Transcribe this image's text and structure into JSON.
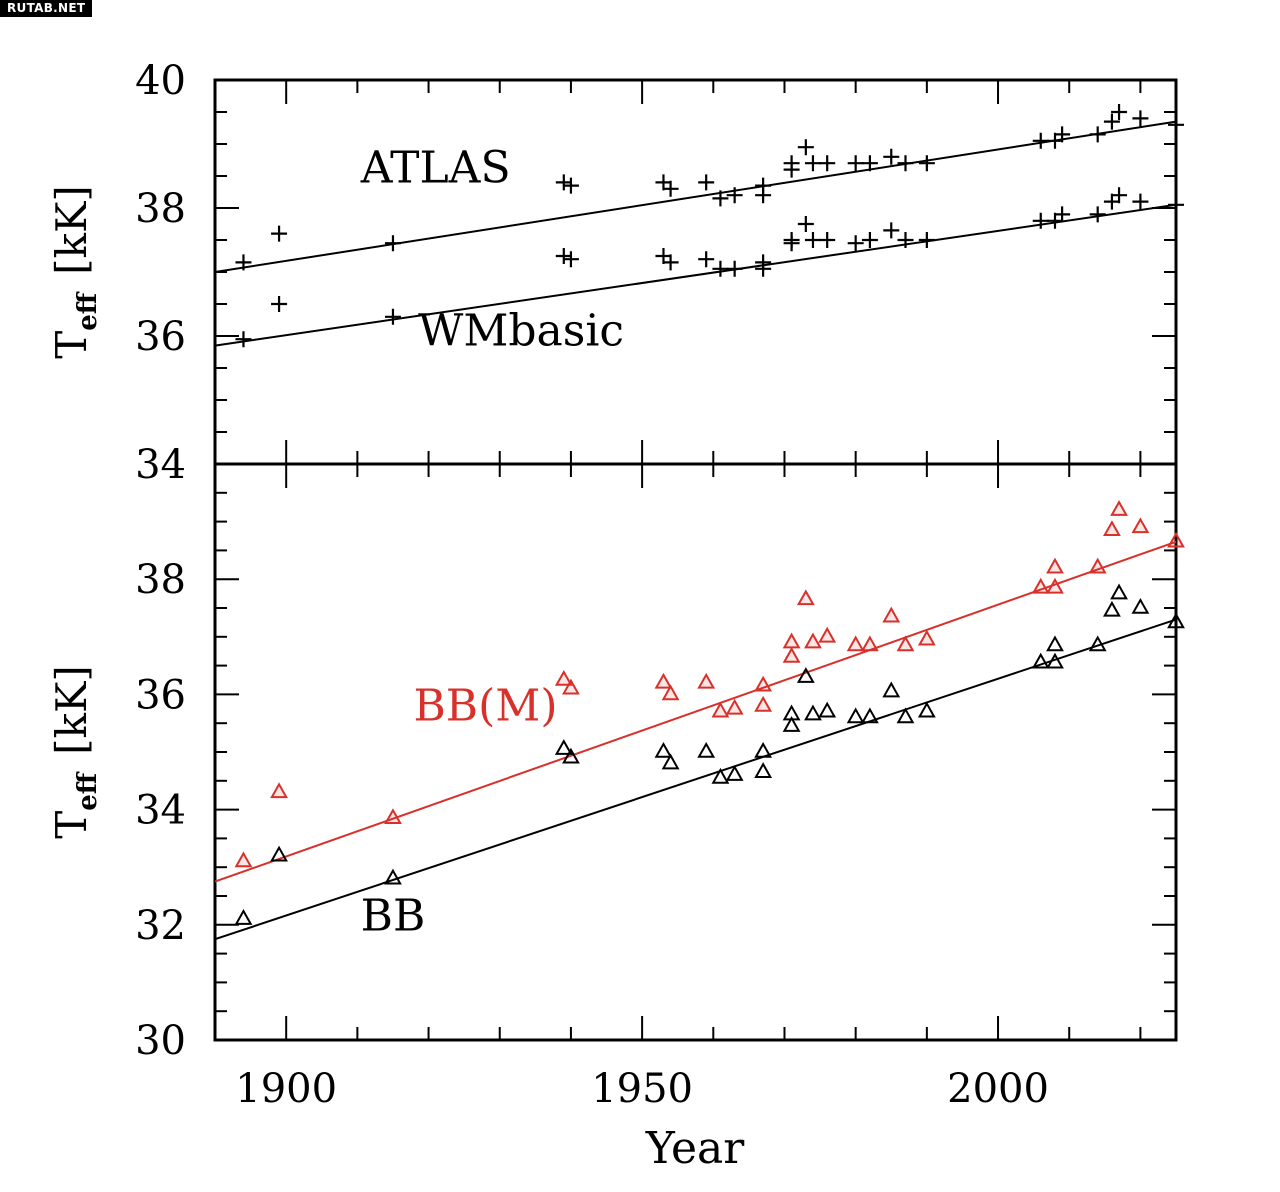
{
  "watermark": "RUTAB.NET",
  "chart_data": [
    {
      "type": "scatter",
      "panel": "top",
      "xlim": [
        1890,
        2025
      ],
      "ylim": [
        34,
        40
      ],
      "ylabel_main": "T",
      "ylabel_sub": "eff",
      "ylabel_unit": "[kK]",
      "yticks": [
        34,
        36,
        38,
        40
      ],
      "series": [
        {
          "name": "ATLAS",
          "color": "#000000",
          "marker": "plus",
          "points": [
            [
              1894,
              37.15
            ],
            [
              1899,
              37.6
            ],
            [
              1915,
              37.45
            ],
            [
              1939,
              38.4
            ],
            [
              1940,
              38.35
            ],
            [
              1953,
              38.4
            ],
            [
              1954,
              38.3
            ],
            [
              1959,
              38.4
            ],
            [
              1961,
              38.15
            ],
            [
              1963,
              38.2
            ],
            [
              1967,
              38.35
            ],
            [
              1967,
              38.2
            ],
            [
              1971,
              38.6
            ],
            [
              1971,
              38.7
            ],
            [
              1973,
              38.95
            ],
            [
              1974,
              38.7
            ],
            [
              1976,
              38.7
            ],
            [
              1980,
              38.7
            ],
            [
              1982,
              38.7
            ],
            [
              1985,
              38.8
            ],
            [
              1987,
              38.7
            ],
            [
              1990,
              38.7
            ],
            [
              2006,
              39.05
            ],
            [
              2008,
              39.05
            ],
            [
              2009,
              39.15
            ],
            [
              2014,
              39.15
            ],
            [
              2016,
              39.35
            ],
            [
              2017,
              39.5
            ],
            [
              2020,
              39.4
            ],
            [
              2025,
              39.3
            ]
          ],
          "fit": [
            [
              1890,
              37.0
            ],
            [
              2025,
              39.35
            ]
          ]
        },
        {
          "name": "WMbasic",
          "color": "#000000",
          "marker": "plus",
          "points": [
            [
              1894,
              35.95
            ],
            [
              1899,
              36.5
            ],
            [
              1915,
              36.3
            ],
            [
              1939,
              37.25
            ],
            [
              1940,
              37.2
            ],
            [
              1953,
              37.25
            ],
            [
              1954,
              37.15
            ],
            [
              1959,
              37.2
            ],
            [
              1961,
              37.05
            ],
            [
              1963,
              37.05
            ],
            [
              1967,
              37.15
            ],
            [
              1967,
              37.05
            ],
            [
              1971,
              37.45
            ],
            [
              1971,
              37.5
            ],
            [
              1973,
              37.75
            ],
            [
              1974,
              37.5
            ],
            [
              1976,
              37.5
            ],
            [
              1980,
              37.45
            ],
            [
              1982,
              37.5
            ],
            [
              1985,
              37.65
            ],
            [
              1987,
              37.5
            ],
            [
              1990,
              37.5
            ],
            [
              2006,
              37.8
            ],
            [
              2008,
              37.8
            ],
            [
              2009,
              37.9
            ],
            [
              2014,
              37.9
            ],
            [
              2016,
              38.1
            ],
            [
              2017,
              38.2
            ],
            [
              2020,
              38.1
            ],
            [
              2025,
              38.05
            ]
          ],
          "fit": [
            [
              1890,
              35.85
            ],
            [
              2025,
              38.05
            ]
          ]
        }
      ],
      "annotations": [
        {
          "text": "ATLAS",
          "x": 1921,
          "y": 38.4
        },
        {
          "text": "WMbasic",
          "x": 1933,
          "y": 35.85
        }
      ]
    },
    {
      "type": "scatter",
      "panel": "bottom",
      "xlim": [
        1890,
        2025
      ],
      "ylim": [
        30,
        40
      ],
      "xlabel": "Year",
      "xticks": [
        1900,
        1950,
        2000
      ],
      "ylabel_main": "T",
      "ylabel_sub": "eff",
      "ylabel_unit": "[kK]",
      "yticks": [
        30,
        32,
        34,
        36,
        38
      ],
      "series": [
        {
          "name": "BB(M)",
          "color": "#d8302a",
          "marker": "triangle",
          "points": [
            [
              1894,
              33.1
            ],
            [
              1899,
              34.3
            ],
            [
              1915,
              33.85
            ],
            [
              1939,
              36.25
            ],
            [
              1940,
              36.1
            ],
            [
              1953,
              36.2
            ],
            [
              1954,
              36.0
            ],
            [
              1959,
              36.2
            ],
            [
              1961,
              35.7
            ],
            [
              1963,
              35.75
            ],
            [
              1967,
              36.15
            ],
            [
              1967,
              35.8
            ],
            [
              1971,
              36.65
            ],
            [
              1971,
              36.9
            ],
            [
              1973,
              37.65
            ],
            [
              1974,
              36.9
            ],
            [
              1976,
              37.0
            ],
            [
              1980,
              36.85
            ],
            [
              1982,
              36.85
            ],
            [
              1985,
              37.35
            ],
            [
              1987,
              36.85
            ],
            [
              1990,
              36.95
            ],
            [
              2006,
              37.85
            ],
            [
              2008,
              37.85
            ],
            [
              2008,
              38.2
            ],
            [
              2014,
              38.2
            ],
            [
              2016,
              38.85
            ],
            [
              2017,
              39.2
            ],
            [
              2020,
              38.9
            ],
            [
              2025,
              38.65
            ]
          ],
          "fit": [
            [
              1890,
              32.75
            ],
            [
              2025,
              38.65
            ]
          ]
        },
        {
          "name": "BB",
          "color": "#000000",
          "marker": "triangle",
          "points": [
            [
              1894,
              32.1
            ],
            [
              1899,
              33.2
            ],
            [
              1915,
              32.8
            ],
            [
              1939,
              35.05
            ],
            [
              1940,
              34.9
            ],
            [
              1953,
              35.0
            ],
            [
              1954,
              34.8
            ],
            [
              1959,
              35.0
            ],
            [
              1961,
              34.55
            ],
            [
              1963,
              34.6
            ],
            [
              1967,
              35.0
            ],
            [
              1967,
              34.65
            ],
            [
              1971,
              35.45
            ],
            [
              1971,
              35.65
            ],
            [
              1973,
              36.3
            ],
            [
              1974,
              35.65
            ],
            [
              1976,
              35.7
            ],
            [
              1980,
              35.6
            ],
            [
              1982,
              35.6
            ],
            [
              1985,
              36.05
            ],
            [
              1987,
              35.6
            ],
            [
              1990,
              35.7
            ],
            [
              2006,
              36.55
            ],
            [
              2008,
              36.55
            ],
            [
              2008,
              36.85
            ],
            [
              2014,
              36.85
            ],
            [
              2016,
              37.45
            ],
            [
              2017,
              37.75
            ],
            [
              2020,
              37.5
            ],
            [
              2025,
              37.25
            ]
          ],
          "fit": [
            [
              1890,
              31.75
            ],
            [
              2025,
              37.3
            ]
          ]
        }
      ],
      "annotations": [
        {
          "text": "BB(M)",
          "x": 1928,
          "y": 35.55,
          "color": "#d8302a"
        },
        {
          "text": "BB",
          "x": 1915,
          "y": 31.9
        }
      ]
    }
  ]
}
